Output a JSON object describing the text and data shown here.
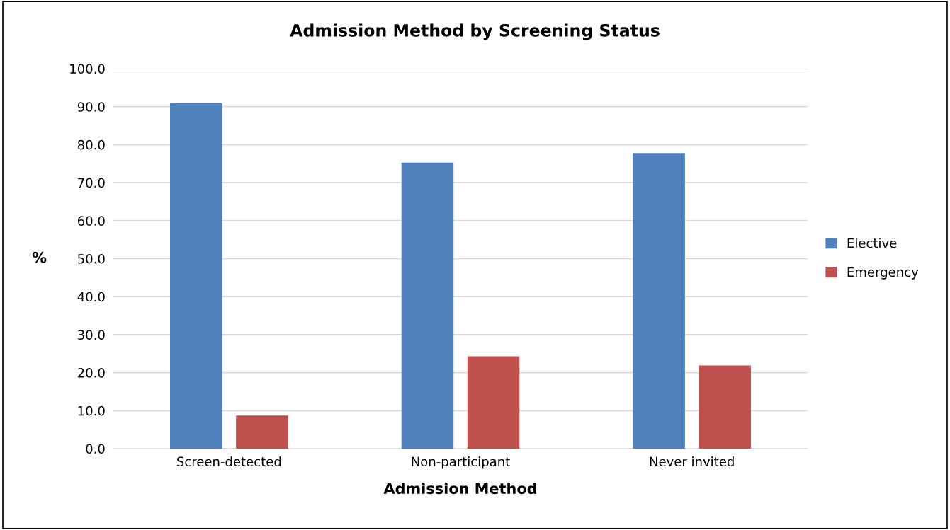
{
  "chart_data": {
    "type": "bar",
    "title": "Admission Method by Screening Status",
    "xlabel": "Admission Method",
    "ylabel": "%",
    "categories": [
      "Screen-detected",
      "Non-participant",
      "Never invited"
    ],
    "series": [
      {
        "name": "Elective",
        "color": "#4f81bd",
        "values": [
          90.9,
          75.3,
          77.8
        ]
      },
      {
        "name": "Emergency",
        "color": "#c0504d",
        "values": [
          8.7,
          24.3,
          21.9
        ]
      }
    ],
    "ylim": [
      0,
      100
    ],
    "yticks": [
      {
        "value": 0,
        "label": "0.0"
      },
      {
        "value": 10,
        "label": "10.0"
      },
      {
        "value": 20,
        "label": "20.0"
      },
      {
        "value": 30,
        "label": "30.0"
      },
      {
        "value": 40,
        "label": "40.0"
      },
      {
        "value": 50,
        "label": "50.0"
      },
      {
        "value": 60,
        "label": "60.0"
      },
      {
        "value": 70,
        "label": "70.0"
      },
      {
        "value": 80,
        "label": "80.0"
      },
      {
        "value": 90,
        "label": "90.0"
      },
      {
        "value": 100,
        "label": "100.0"
      }
    ],
    "grid": "y",
    "legend": "right"
  }
}
